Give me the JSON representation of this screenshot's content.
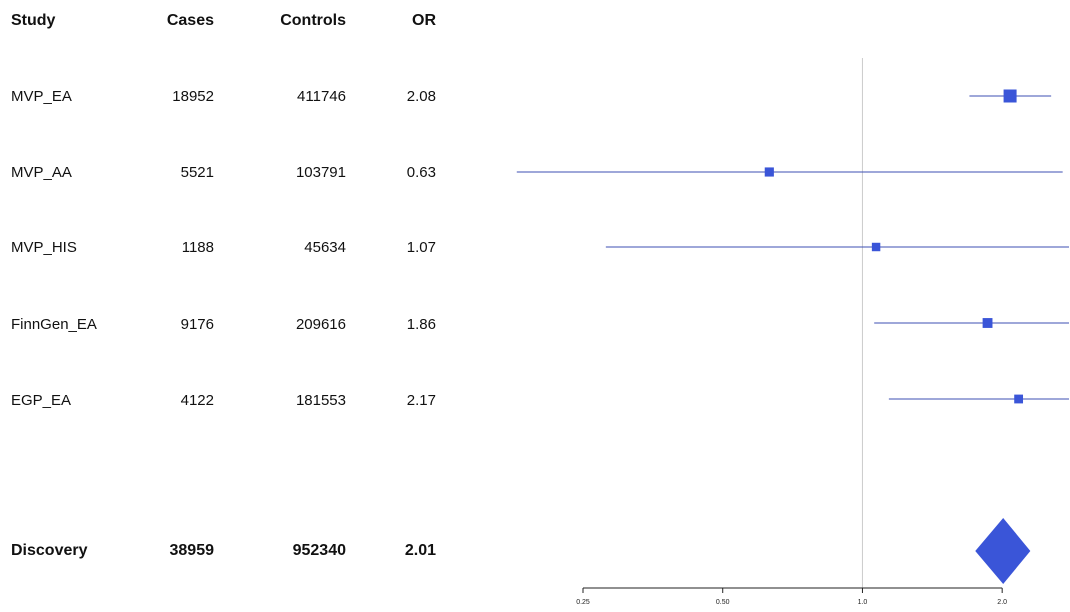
{
  "table": {
    "headers": {
      "study": "Study",
      "cases": "Cases",
      "controls": "Controls",
      "or": "OR"
    },
    "rows": [
      {
        "study": "MVP_EA",
        "cases": "18952",
        "controls": "411746",
        "or": "2.08"
      },
      {
        "study": "MVP_AA",
        "cases": "5521",
        "controls": "103791",
        "or": "0.63"
      },
      {
        "study": "MVP_HIS",
        "cases": "1188",
        "controls": "45634",
        "or": "1.07"
      },
      {
        "study": "FinnGen_EA",
        "cases": "9176",
        "controls": "209616",
        "or": "1.86"
      },
      {
        "study": "EGP_EA",
        "cases": "4122",
        "controls": "181553",
        "or": "2.17"
      }
    ],
    "summary": {
      "study": "Discovery",
      "cases": "38959",
      "controls": "952340",
      "or": "2.01"
    }
  },
  "chart_data": {
    "type": "forest",
    "x_scale": "log2",
    "xlim": [
      0.25,
      2.8
    ],
    "x_ticks": [
      0.25,
      0.5,
      1.0,
      2.0
    ],
    "x_tick_labels": [
      "0.25",
      "0.50",
      "1.0",
      "2.0"
    ],
    "reference_line": 1.0,
    "series": [
      {
        "study": "MVP_EA",
        "or": 2.08,
        "ci_low": 1.7,
        "ci_high": 2.55,
        "weight": 1.0
      },
      {
        "study": "MVP_AA",
        "or": 0.63,
        "ci_low": 0.18,
        "ci_high": 2.7,
        "weight": 0.45
      },
      {
        "study": "MVP_HIS",
        "or": 1.07,
        "ci_low": 0.28,
        "ci_high": 2.8,
        "weight": 0.35
      },
      {
        "study": "FinnGen_EA",
        "or": 1.86,
        "ci_low": 1.06,
        "ci_high": 3.2,
        "weight": 0.55
      },
      {
        "study": "EGP_EA",
        "or": 2.17,
        "ci_low": 1.14,
        "ci_high": 2.8,
        "weight": 0.4
      }
    ],
    "summary": {
      "study": "Discovery",
      "or": 2.01,
      "ci_low": 1.75,
      "ci_high": 2.3
    },
    "colors": {
      "point": "#3a55d8",
      "line": "#3e4fb3",
      "refline": "#cccccc",
      "axis": "#222222"
    }
  }
}
